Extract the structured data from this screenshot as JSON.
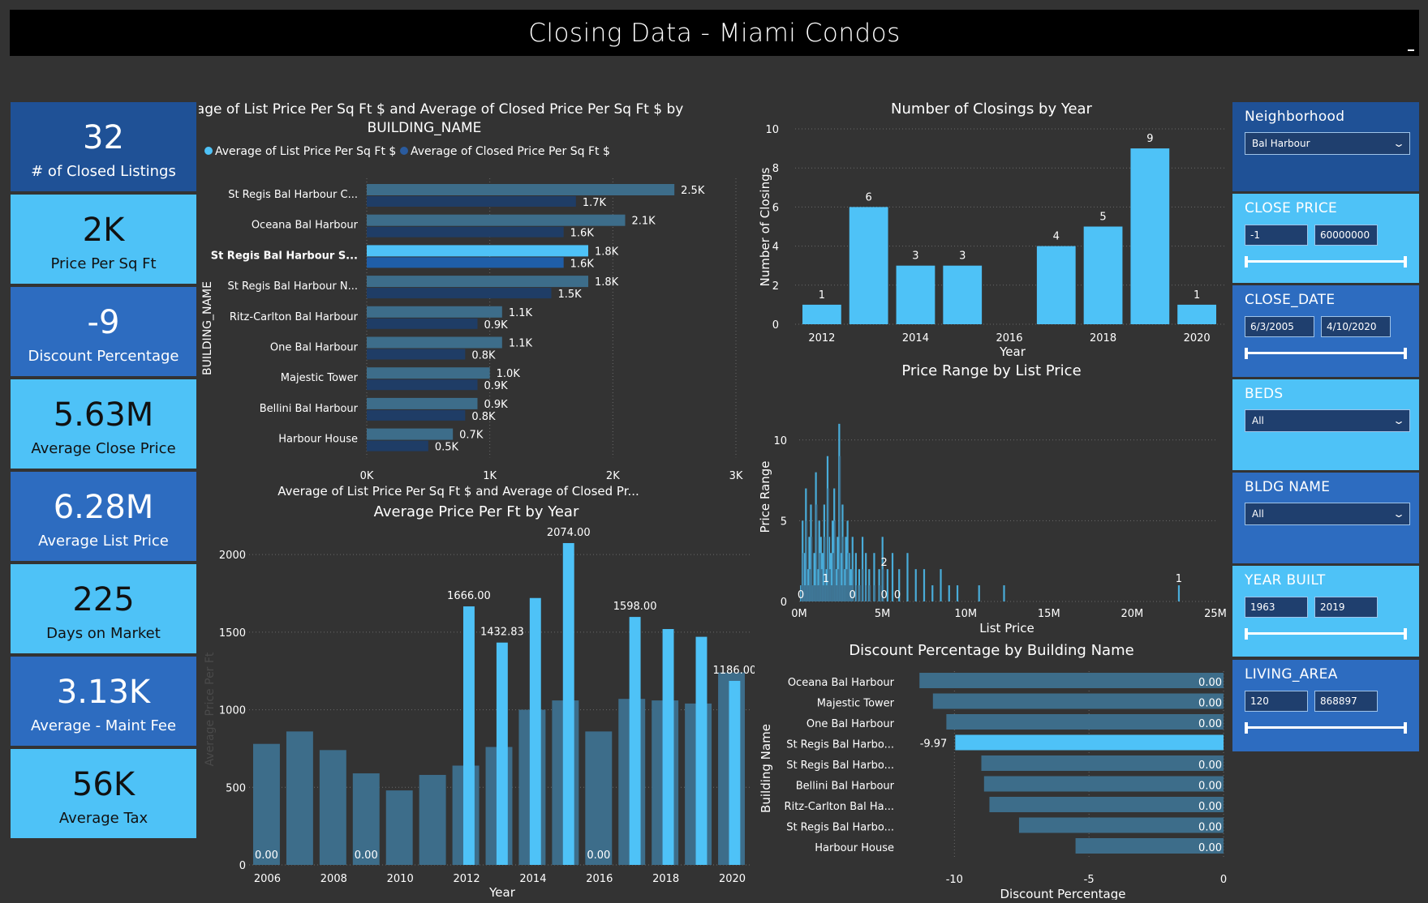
{
  "header": {
    "title": "Closing Data - Miami Condos"
  },
  "kpis": [
    {
      "value": "32",
      "label": "# of Closed Listings",
      "style": "dark"
    },
    {
      "value": "2K",
      "label": "Price Per Sq Ft",
      "style": "light"
    },
    {
      "value": "-9",
      "label": "Discount Percentage",
      "style": "mid"
    },
    {
      "value": "5.63M",
      "label": "Average Close Price",
      "style": "light"
    },
    {
      "value": "6.28M",
      "label": "Average List Price",
      "style": "mid"
    },
    {
      "value": "225",
      "label": "Days on Market",
      "style": "light"
    },
    {
      "value": "3.13K",
      "label": "Average - Maint Fee",
      "style": "mid"
    },
    {
      "value": "56K",
      "label": "Average Tax",
      "style": "light"
    }
  ],
  "filters": {
    "neighborhood": {
      "title": "Neighborhood",
      "selected": "Bal Harbour"
    },
    "close_price": {
      "title": "CLOSE PRICE",
      "min": "-1",
      "max": "60000000"
    },
    "close_date": {
      "title": "CLOSE_DATE",
      "min": "6/3/2005",
      "max": "4/10/2020"
    },
    "beds": {
      "title": "BEDS",
      "selected": "All"
    },
    "bldg_name": {
      "title": "BLDG NAME",
      "selected": "All"
    },
    "year_built": {
      "title": "YEAR BUILT",
      "min": "1963",
      "max": "2019"
    },
    "living_area": {
      "title": "LIVING_AREA",
      "min": "120",
      "max": "868897"
    }
  },
  "colors": {
    "bright": "#4ec2f7",
    "muted": "#3d6d8a",
    "dark_bar": "#1f3d66",
    "axis_text": "#ffffff",
    "grid": "#6a6a6a"
  },
  "chart_data": [
    {
      "id": "price_per_sqft_by_building",
      "type": "bar",
      "orientation": "horizontal",
      "title": "Average of List Price Per Sq Ft $ and Average of Closed Price Per Sq Ft $ by BUILDING_NAME",
      "title_line1": "Average of List Price Per Sq Ft $ and Average of Closed Price Per Sq Ft $ by",
      "title_line2": "BUILDING_NAME",
      "xlabel": "Average of List Price Per Sq Ft $ and Average of Closed Pr...",
      "ylabel": "BUILDING_NAME",
      "legend_position": "top-left",
      "categories": [
        "St Regis Bal Harbour C...",
        "Oceana Bal Harbour",
        "St Regis Bal Harbour S...",
        "St Regis Bal Harbour N...",
        "Ritz-Carlton Bal Harbour",
        "One Bal Harbour",
        "Majestic Tower",
        "Bellini Bal Harbour",
        "Harbour House"
      ],
      "highlight_index": 2,
      "series": [
        {
          "name": "Average of List Price Per Sq Ft $",
          "values": [
            2500,
            2100,
            1800,
            1800,
            1100,
            1100,
            1000,
            900,
            700
          ],
          "labels": [
            "2.5K",
            "2.1K",
            "1.8K",
            "1.8K",
            "1.1K",
            "1.1K",
            "1.0K",
            "0.9K",
            "0.7K"
          ]
        },
        {
          "name": "Average of Closed Price Per Sq Ft $",
          "values": [
            1700,
            1600,
            1600,
            1500,
            900,
            800,
            900,
            800,
            500
          ],
          "labels": [
            "1.7K",
            "1.6K",
            "1.6K",
            "1.5K",
            "0.9K",
            "0.8K",
            "0.9K",
            "0.8K",
            "0.5K"
          ]
        }
      ],
      "xlim": [
        0,
        3000
      ],
      "xticks": [
        "0K",
        "1K",
        "2K",
        "3K"
      ]
    },
    {
      "id": "closings_by_year",
      "type": "bar",
      "title": "Number of Closings by Year",
      "xlabel": "Year",
      "ylabel": "Number of Closings",
      "x": [
        2012,
        2013,
        2014,
        2015,
        2016,
        2017,
        2018,
        2019,
        2020
      ],
      "values": [
        1,
        6,
        3,
        3,
        0,
        4,
        5,
        9,
        1
      ],
      "labels": [
        "1",
        "6",
        "3",
        "3",
        "",
        "4",
        "5",
        "9",
        "1"
      ],
      "ylim": [
        0,
        10
      ],
      "yticks": [
        0,
        2,
        4,
        6,
        8,
        10
      ],
      "xticks": [
        2012,
        2014,
        2016,
        2018,
        2020
      ],
      "grid": true
    },
    {
      "id": "price_range_by_list_price",
      "type": "bar",
      "title": "Price Range by List Price",
      "xlabel": "List Price",
      "ylabel": "Price Range",
      "xlim": [
        0,
        25000000
      ],
      "ylim": [
        0,
        13
      ],
      "xticks": [
        "0M",
        "5M",
        "10M",
        "15M",
        "20M",
        "25M"
      ],
      "yticks": [
        0,
        5,
        10
      ],
      "points": [
        [
          100000,
          1
        ],
        [
          200000,
          5
        ],
        [
          300000,
          3
        ],
        [
          400000,
          7
        ],
        [
          500000,
          2
        ],
        [
          600000,
          4
        ],
        [
          700000,
          6
        ],
        [
          800000,
          1
        ],
        [
          900000,
          3
        ],
        [
          1000000,
          8
        ],
        [
          1100000,
          2
        ],
        [
          1200000,
          5
        ],
        [
          1300000,
          4
        ],
        [
          1400000,
          3
        ],
        [
          1500000,
          6
        ],
        [
          1600000,
          2
        ],
        [
          1700000,
          9
        ],
        [
          1800000,
          4
        ],
        [
          1900000,
          3
        ],
        [
          2000000,
          5
        ],
        [
          2100000,
          7
        ],
        [
          2200000,
          2
        ],
        [
          2300000,
          4
        ],
        [
          2400000,
          11
        ],
        [
          2500000,
          3
        ],
        [
          2600000,
          6
        ],
        [
          2700000,
          2
        ],
        [
          2800000,
          4
        ],
        [
          2900000,
          5
        ],
        [
          3000000,
          3
        ],
        [
          3100000,
          2
        ],
        [
          3200000,
          4
        ],
        [
          3400000,
          3
        ],
        [
          3600000,
          2
        ],
        [
          3800000,
          4
        ],
        [
          4000000,
          3
        ],
        [
          4200000,
          2
        ],
        [
          4500000,
          3
        ],
        [
          4800000,
          2
        ],
        [
          5000000,
          4
        ],
        [
          5300000,
          2
        ],
        [
          5600000,
          3
        ],
        [
          6000000,
          2
        ],
        [
          6500000,
          3
        ],
        [
          7000000,
          2
        ],
        [
          7500000,
          2
        ],
        [
          8000000,
          1
        ],
        [
          8500000,
          2
        ],
        [
          9000000,
          1
        ],
        [
          9500000,
          1
        ],
        [
          10800000,
          1
        ],
        [
          12300000,
          1
        ],
        [
          22800000,
          1
        ]
      ],
      "annotations": [
        {
          "x": 100000,
          "y": 0,
          "text": "0"
        },
        {
          "x": 1600000,
          "y": 1,
          "text": "1"
        },
        {
          "x": 3200000,
          "y": 0,
          "text": "0"
        },
        {
          "x": 5100000,
          "y": 0,
          "text": "0"
        },
        {
          "x": 5100000,
          "y": 2,
          "text": "2"
        },
        {
          "x": 5900000,
          "y": 0,
          "text": "0"
        },
        {
          "x": 22800000,
          "y": 1,
          "text": "1"
        }
      ]
    },
    {
      "id": "avg_price_per_ft_by_year",
      "type": "bar",
      "title": "Average Price Per Ft by Year",
      "xlabel": "Year",
      "ylabel": "Average Price Per Ft",
      "x": [
        2006,
        2007,
        2008,
        2009,
        2010,
        2011,
        2012,
        2013,
        2014,
        2015,
        2016,
        2017,
        2018,
        2019,
        2020
      ],
      "series": [
        {
          "name": "muted",
          "values": [
            780,
            860,
            740,
            590,
            480,
            580,
            640,
            760,
            1000,
            1060,
            860,
            1070,
            1060,
            1040,
            1240
          ]
        },
        {
          "name": "bright",
          "values": [
            0,
            0,
            0,
            0,
            0,
            0,
            1666,
            1432.83,
            1720,
            2074,
            0,
            1598,
            1520,
            1470,
            1186
          ]
        }
      ],
      "labels": [
        {
          "x": 2006,
          "text": "0.00",
          "pos": "bottom"
        },
        {
          "x": 2009,
          "text": "0.00",
          "pos": "bottom"
        },
        {
          "x": 2012,
          "text": "1666.00",
          "pos": "top"
        },
        {
          "x": 2013,
          "text": "1432.83",
          "pos": "top"
        },
        {
          "x": 2015,
          "text": "2074.00",
          "pos": "top"
        },
        {
          "x": 2016,
          "text": "0.00",
          "pos": "bottom"
        },
        {
          "x": 2017,
          "text": "1598.00",
          "pos": "top"
        },
        {
          "x": 2020,
          "text": "1186.00",
          "pos": "top"
        }
      ],
      "ylim": [
        0,
        2100
      ],
      "yticks": [
        0,
        500,
        1000,
        1500,
        2000
      ],
      "xticks": [
        2006,
        2008,
        2010,
        2012,
        2014,
        2016,
        2018,
        2020
      ]
    },
    {
      "id": "discount_by_building",
      "type": "bar",
      "orientation": "horizontal",
      "title": "Discount Percentage by Building Name",
      "xlabel": "Discount Percentage",
      "ylabel": "Building Name",
      "categories": [
        "Oceana Bal Harbour",
        "Majestic Tower",
        "One Bal Harbour",
        "St Regis Bal Harbo...",
        "St Regis Bal Harbo...",
        "Bellini Bal Harbour",
        "Ritz-Carlton Bal Ha...",
        "St Regis Bal Harbo...",
        "Harbour House"
      ],
      "values": [
        -11.3,
        -10.8,
        -10.3,
        -9.97,
        -9.0,
        -8.9,
        -8.7,
        -7.6,
        -5.5
      ],
      "labels": [
        "0.00",
        "0.00",
        "0.00",
        "-9.97",
        "0.00",
        "0.00",
        "0.00",
        "0.00",
        "0.00"
      ],
      "highlight_index": 3,
      "xlim": [
        -12,
        0
      ],
      "xticks": [
        -10,
        -5,
        0
      ]
    }
  ]
}
